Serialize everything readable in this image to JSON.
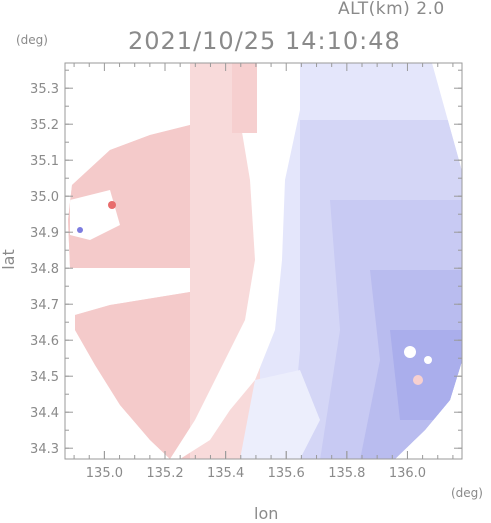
{
  "header": {
    "altitude": "ALT(km) 2.0",
    "timestamp": "2021/10/25 14:10:48"
  },
  "axes": {
    "y_unit": "(deg)",
    "x_unit": "(deg)",
    "ylabel": "lat",
    "xlabel": "lon",
    "x_ticks": [
      135.0,
      135.2,
      135.4,
      135.6,
      135.8,
      136.0
    ],
    "y_ticks": [
      34.3,
      34.4,
      34.5,
      34.6,
      34.7,
      34.8,
      34.9,
      35.0,
      35.1,
      35.2,
      35.3
    ],
    "x_tick_labels": [
      "135.0",
      "135.2",
      "135.4",
      "135.6",
      "135.8",
      "136.0"
    ],
    "y_tick_labels": [
      "34.3",
      "34.4",
      "34.5",
      "34.6",
      "34.7",
      "34.8",
      "34.9",
      "35.0",
      "35.1",
      "35.2",
      "35.3"
    ],
    "xlim": [
      134.87,
      136.18
    ],
    "ylim": [
      34.27,
      35.37
    ]
  },
  "map": {
    "type": "radar-velocity-ppi",
    "colors": {
      "toward": "#e3e6fb",
      "away": "#f7dada",
      "frame": "#9a9a9a"
    }
  }
}
